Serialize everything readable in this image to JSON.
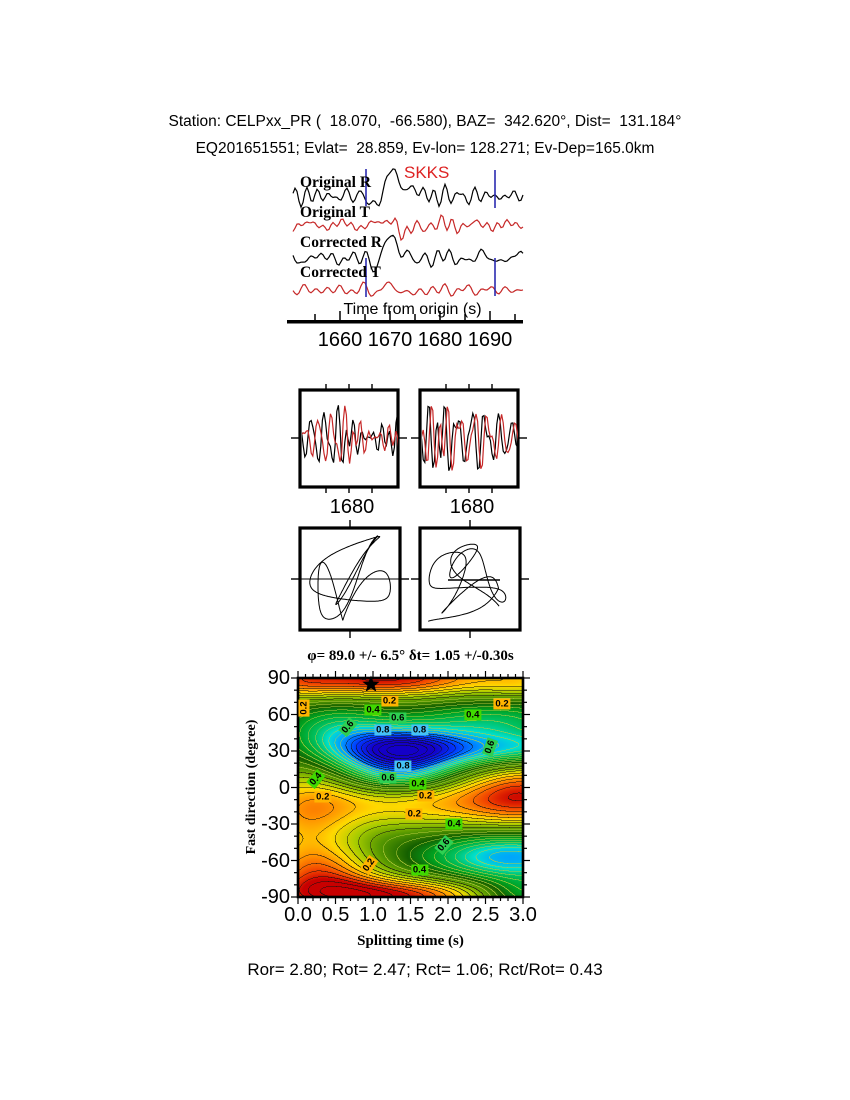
{
  "header": {
    "line1": "Station: CELPxx_PR (  18.070,  -66.580), BAZ=  342.620°, Dist=  131.184°",
    "line2": "EQ201651551; Evlat=  28.859, Ev-lon= 128.271; Ev-Dep=165.0km"
  },
  "waveforms": {
    "phase_label": "SKKS",
    "phase_color": "#dd2222",
    "trace_color_r": "#000000",
    "trace_color_t": "#c62828",
    "window_color": "#2a2ab0",
    "traces": [
      {
        "label": "Original R"
      },
      {
        "label": "Original T"
      },
      {
        "label": "Corrected R"
      },
      {
        "label": "Corrected T"
      }
    ],
    "axis": {
      "title": "Time from origin (s)",
      "ticks": [
        "1660",
        "1670",
        "1680",
        "1690"
      ]
    }
  },
  "window_panels": {
    "xtick_left": "1680",
    "xtick_right": "1680"
  },
  "contour": {
    "title": "φ= 89.0 +/- 6.5° δt= 1.05 +/-0.30s",
    "ylabel": "Fast direction (degree)",
    "xlabel": "Splitting time (s)",
    "yticks": [
      "90",
      "60",
      "30",
      "0",
      "-30",
      "-60",
      "-90"
    ],
    "xticks": [
      "0.0",
      "0.5",
      "1.0",
      "1.5",
      "2.0",
      "2.5",
      "3.0"
    ],
    "label_colors": {
      "0.2": "#ffb400",
      "0.4": "#40d800",
      "0.6": "#2ed052",
      "0.8": "#45c2f5"
    },
    "labels": [
      {
        "v": "0.2",
        "t": 1.22,
        "phi": 71,
        "rot": 0
      },
      {
        "v": "0.4",
        "t": 1.0,
        "phi": 64,
        "rot": 0
      },
      {
        "v": "0.6",
        "t": 1.33,
        "phi": 57,
        "rot": 0
      },
      {
        "v": "0.8",
        "t": 1.13,
        "phi": 47,
        "rot": 0
      },
      {
        "v": "0.8",
        "t": 1.62,
        "phi": 47,
        "rot": 0
      },
      {
        "v": "0.6",
        "t": 0.66,
        "phi": 50,
        "rot": -50
      },
      {
        "v": "0.2",
        "t": 0.08,
        "phi": 65,
        "rot": -90
      },
      {
        "v": "0.4",
        "t": 2.33,
        "phi": 60,
        "rot": 0
      },
      {
        "v": "0.2",
        "t": 2.72,
        "phi": 69,
        "rot": 0
      },
      {
        "v": "0.6",
        "t": 2.56,
        "phi": 33,
        "rot": -70
      },
      {
        "v": "0.8",
        "t": 1.4,
        "phi": 18,
        "rot": 0
      },
      {
        "v": "0.6",
        "t": 1.2,
        "phi": 8,
        "rot": 0
      },
      {
        "v": "0.4",
        "t": 1.6,
        "phi": 3,
        "rot": 0
      },
      {
        "v": "0.4",
        "t": 0.24,
        "phi": 7,
        "rot": -50
      },
      {
        "v": "0.2",
        "t": 0.33,
        "phi": -8,
        "rot": 0
      },
      {
        "v": "0.2",
        "t": 1.7,
        "phi": -7,
        "rot": 0
      },
      {
        "v": "0.2",
        "t": 1.55,
        "phi": -22,
        "rot": 0
      },
      {
        "v": "0.4",
        "t": 2.08,
        "phi": -30,
        "rot": 0
      },
      {
        "v": "0.6",
        "t": 1.95,
        "phi": -47,
        "rot": -50
      },
      {
        "v": "0.2",
        "t": 0.95,
        "phi": -64,
        "rot": -55
      },
      {
        "v": "0.4",
        "t": 1.62,
        "phi": -68,
        "rot": 0
      }
    ]
  },
  "footer": {
    "stats": "Ror= 2.80; Rot= 2.47; Rct= 1.06; Rct/Rot= 0.43"
  },
  "chart_data": [
    {
      "type": "line",
      "title": "Radial and transverse waveforms before and after splitting correction",
      "series": [
        {
          "name": "Original R"
        },
        {
          "name": "Original T"
        },
        {
          "name": "Corrected R"
        },
        {
          "name": "Corrected T"
        }
      ],
      "phase_marker": "SKKS",
      "xlabel": "Time from origin (s)",
      "x_ticks": [
        1660,
        1670,
        1680,
        1690
      ],
      "analysis_window_s": [
        1665.2,
        1691.0
      ]
    },
    {
      "type": "line",
      "title": "Fast/slow component comparison windows",
      "panels": 2,
      "x_ticks": [
        1680
      ]
    },
    {
      "type": "heatmap",
      "title": "φ= 89.0 +/- 6.5° δt= 1.05 +/-0.30s",
      "xlabel": "Splitting time (s)",
      "ylabel": "Fast direction (degree)",
      "xlim": [
        0,
        3
      ],
      "ylim": [
        -90,
        90
      ],
      "xticks": [
        0.0,
        0.5,
        1.0,
        1.5,
        2.0,
        2.5,
        3.0
      ],
      "yticks": [
        90,
        60,
        30,
        0,
        -30,
        -60,
        -90
      ],
      "contour_levels_labeled": [
        0.2,
        0.4,
        0.6,
        0.8
      ],
      "best_fit": {
        "fast_direction_deg": 89.0,
        "fast_direction_err_deg": 6.5,
        "split_time_s": 1.05,
        "split_time_err_s": 0.3
      },
      "minimum_region": {
        "split_time_s": 1.35,
        "fast_direction_deg": 31
      },
      "marker": {
        "split_time_s": 1.0,
        "fast_direction_deg": 90,
        "symbol": "star"
      },
      "stats": {
        "Ror": 2.8,
        "Rot": 2.47,
        "Rct": 1.06,
        "Rct_over_Rot": 0.43
      }
    }
  ]
}
